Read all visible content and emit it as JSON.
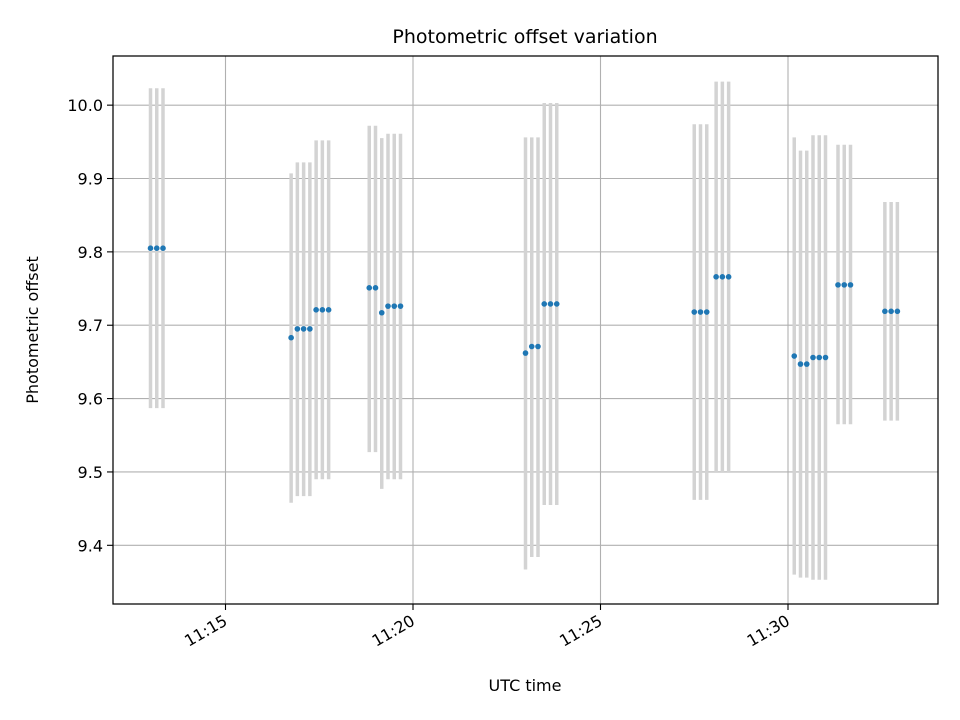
{
  "chart_data": {
    "type": "scatter",
    "title": "Photometric offset variation",
    "xlabel": "UTC time",
    "ylabel": "Photometric offset",
    "grid": true,
    "xlim": [
      "11:12:00",
      "11:34:00"
    ],
    "ylim": [
      9.32,
      10.067
    ],
    "xticks": [
      "11:15",
      "11:20",
      "11:25",
      "11:30"
    ],
    "yticks": [
      9.4,
      9.5,
      9.6,
      9.7,
      9.8,
      9.9,
      10.0
    ],
    "marker_color": "#1f77b4",
    "errorbar_color": "#d3d3d3",
    "points": [
      {
        "t": "11:13:00",
        "y": 9.805,
        "lo": 9.587,
        "hi": 10.023
      },
      {
        "t": "11:13:10",
        "y": 9.805,
        "lo": 9.587,
        "hi": 10.023
      },
      {
        "t": "11:13:20",
        "y": 9.805,
        "lo": 9.587,
        "hi": 10.023
      },
      {
        "t": "11:16:45",
        "y": 9.683,
        "lo": 9.458,
        "hi": 9.907
      },
      {
        "t": "11:16:55",
        "y": 9.695,
        "lo": 9.467,
        "hi": 9.922
      },
      {
        "t": "11:17:05",
        "y": 9.695,
        "lo": 9.467,
        "hi": 9.922
      },
      {
        "t": "11:17:15",
        "y": 9.695,
        "lo": 9.467,
        "hi": 9.922
      },
      {
        "t": "11:17:25",
        "y": 9.721,
        "lo": 9.49,
        "hi": 9.952
      },
      {
        "t": "11:17:35",
        "y": 9.721,
        "lo": 9.49,
        "hi": 9.952
      },
      {
        "t": "11:17:45",
        "y": 9.721,
        "lo": 9.49,
        "hi": 9.952
      },
      {
        "t": "11:18:50",
        "y": 9.751,
        "lo": 9.527,
        "hi": 9.972
      },
      {
        "t": "11:19:00",
        "y": 9.751,
        "lo": 9.527,
        "hi": 9.972
      },
      {
        "t": "11:19:10",
        "y": 9.717,
        "lo": 9.477,
        "hi": 9.955
      },
      {
        "t": "11:19:20",
        "y": 9.726,
        "lo": 9.49,
        "hi": 9.961
      },
      {
        "t": "11:19:30",
        "y": 9.726,
        "lo": 9.49,
        "hi": 9.961
      },
      {
        "t": "11:19:40",
        "y": 9.726,
        "lo": 9.49,
        "hi": 9.961
      },
      {
        "t": "11:23:00",
        "y": 9.662,
        "lo": 9.367,
        "hi": 9.956
      },
      {
        "t": "11:23:10",
        "y": 9.671,
        "lo": 9.384,
        "hi": 9.956
      },
      {
        "t": "11:23:20",
        "y": 9.671,
        "lo": 9.384,
        "hi": 9.956
      },
      {
        "t": "11:23:30",
        "y": 9.729,
        "lo": 9.455,
        "hi": 10.003
      },
      {
        "t": "11:23:40",
        "y": 9.729,
        "lo": 9.455,
        "hi": 10.003
      },
      {
        "t": "11:23:50",
        "y": 9.729,
        "lo": 9.455,
        "hi": 10.003
      },
      {
        "t": "11:27:30",
        "y": 9.718,
        "lo": 9.462,
        "hi": 9.974
      },
      {
        "t": "11:27:40",
        "y": 9.718,
        "lo": 9.462,
        "hi": 9.974
      },
      {
        "t": "11:27:50",
        "y": 9.718,
        "lo": 9.462,
        "hi": 9.974
      },
      {
        "t": "11:28:05",
        "y": 9.766,
        "lo": 9.5,
        "hi": 10.032
      },
      {
        "t": "11:28:15",
        "y": 9.766,
        "lo": 9.5,
        "hi": 10.032
      },
      {
        "t": "11:28:25",
        "y": 9.766,
        "lo": 9.5,
        "hi": 10.032
      },
      {
        "t": "11:30:10",
        "y": 9.658,
        "lo": 9.36,
        "hi": 9.956
      },
      {
        "t": "11:30:20",
        "y": 9.647,
        "lo": 9.356,
        "hi": 9.938
      },
      {
        "t": "11:30:30",
        "y": 9.647,
        "lo": 9.356,
        "hi": 9.938
      },
      {
        "t": "11:30:40",
        "y": 9.656,
        "lo": 9.353,
        "hi": 9.959
      },
      {
        "t": "11:30:50",
        "y": 9.656,
        "lo": 9.353,
        "hi": 9.959
      },
      {
        "t": "11:31:00",
        "y": 9.656,
        "lo": 9.353,
        "hi": 9.959
      },
      {
        "t": "11:31:20",
        "y": 9.755,
        "lo": 9.565,
        "hi": 9.946
      },
      {
        "t": "11:31:30",
        "y": 9.755,
        "lo": 9.565,
        "hi": 9.946
      },
      {
        "t": "11:31:40",
        "y": 9.755,
        "lo": 9.565,
        "hi": 9.946
      },
      {
        "t": "11:32:35",
        "y": 9.719,
        "lo": 9.57,
        "hi": 9.868
      },
      {
        "t": "11:32:45",
        "y": 9.719,
        "lo": 9.57,
        "hi": 9.868
      },
      {
        "t": "11:32:55",
        "y": 9.719,
        "lo": 9.57,
        "hi": 9.868
      }
    ]
  }
}
